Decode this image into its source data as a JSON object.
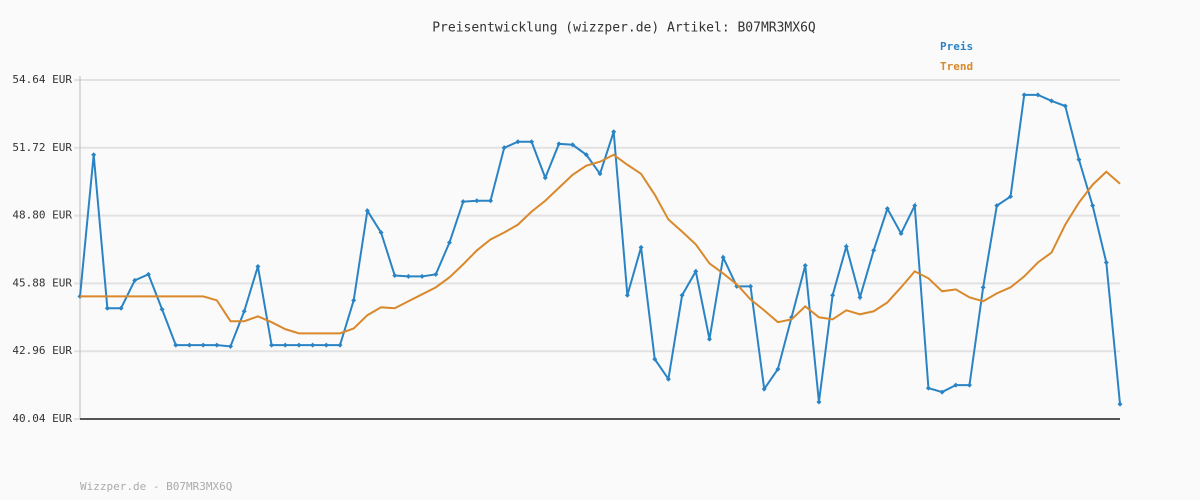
{
  "chart_data": {
    "type": "line",
    "title": "Preisentwicklung (wizzper.de) Artikel: B07MR3MX6Q",
    "footer": "Wizzper.de - B07MR3MX6Q",
    "ylim": [
      40.04,
      54.64
    ],
    "yticks": [
      {
        "value": 40.04,
        "label": "40.04 EUR"
      },
      {
        "value": 42.96,
        "label": "42.96 EUR"
      },
      {
        "value": 45.88,
        "label": "45.88 EUR"
      },
      {
        "value": 48.8,
        "label": "48.80 EUR"
      },
      {
        "value": 51.72,
        "label": "51.72 EUR"
      },
      {
        "value": 54.64,
        "label": "54.64 EUR"
      }
    ],
    "grid": true,
    "legend": "top-right",
    "series": [
      {
        "name": "Preis",
        "color": "#2a84c4",
        "markers": true,
        "values": [
          45.32,
          51.42,
          44.81,
          44.81,
          46.01,
          46.27,
          44.76,
          43.22,
          43.22,
          43.22,
          43.22,
          43.17,
          44.68,
          46.61,
          43.22,
          43.22,
          43.22,
          43.22,
          43.22,
          43.22,
          45.15,
          49.01,
          48.07,
          46.22,
          46.18,
          46.18,
          46.27,
          47.64,
          49.4,
          49.44,
          49.44,
          51.72,
          51.98,
          51.98,
          50.43,
          51.89,
          51.85,
          51.42,
          50.6,
          52.41,
          45.37,
          47.43,
          42.62,
          41.76,
          45.37,
          46.4,
          43.48,
          47.0,
          45.75,
          45.75,
          41.33,
          42.19,
          44.42,
          46.65,
          40.77,
          45.37,
          47.47,
          45.28,
          47.3,
          49.1,
          48.03,
          49.23,
          41.37,
          41.2,
          41.5,
          41.5,
          45.71,
          49.23,
          49.62,
          54.0,
          54.0,
          53.74,
          53.52,
          51.21,
          49.23,
          46.78,
          40.68
        ]
      },
      {
        "name": "Trend",
        "color": "#d9892b",
        "markers": false,
        "values": [
          45.32,
          45.32,
          45.32,
          45.32,
          45.32,
          45.32,
          45.32,
          45.32,
          45.32,
          45.32,
          45.15,
          44.25,
          44.25,
          44.46,
          44.21,
          43.91,
          43.73,
          43.73,
          43.73,
          43.73,
          43.94,
          44.51,
          44.85,
          44.81,
          45.11,
          45.41,
          45.71,
          46.14,
          46.7,
          47.3,
          47.77,
          48.07,
          48.41,
          48.97,
          49.44,
          50.0,
          50.56,
          50.95,
          51.12,
          51.42,
          50.99,
          50.6,
          49.7,
          48.63,
          48.11,
          47.56,
          46.74,
          46.31,
          45.84,
          45.19,
          44.72,
          44.21,
          44.33,
          44.89,
          44.42,
          44.33,
          44.72,
          44.55,
          44.68,
          45.06,
          45.71,
          46.4,
          46.1,
          45.54,
          45.62,
          45.28,
          45.11,
          45.45,
          45.71,
          46.18,
          46.78,
          47.21,
          48.41,
          49.36,
          50.13,
          50.69,
          50.17
        ]
      }
    ]
  }
}
